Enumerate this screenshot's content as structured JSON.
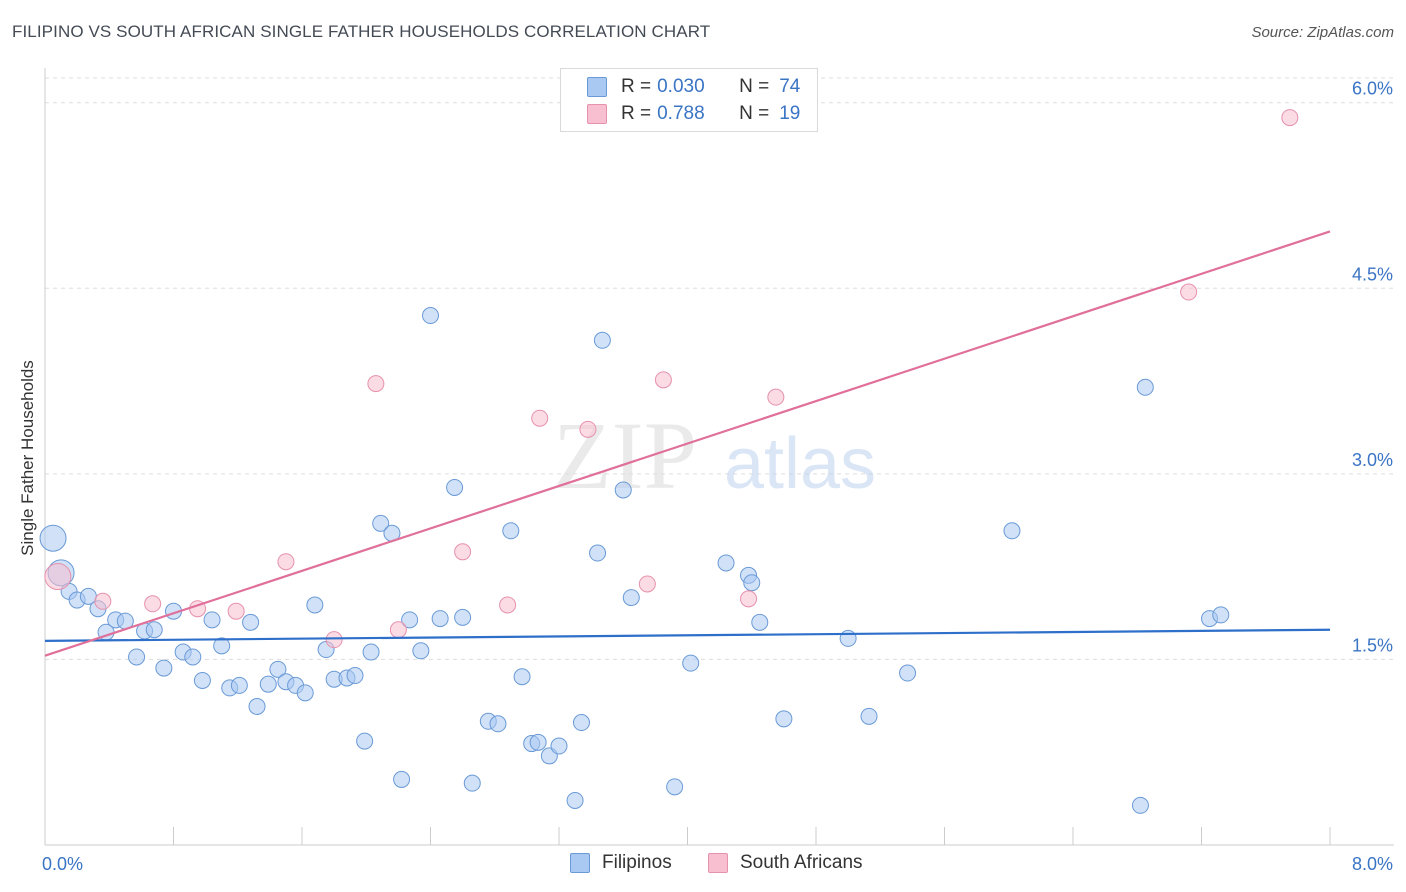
{
  "title": "FILIPINO VS SOUTH AFRICAN SINGLE FATHER HOUSEHOLDS CORRELATION CHART",
  "source": "Source: ZipAtlas.com",
  "watermark": {
    "zip": "ZIP",
    "atlas": "atlas"
  },
  "colors": {
    "blue_fill": "#a9c9f2",
    "blue_stroke": "#6a9ad6",
    "blue_line": "#2e6fca",
    "pink_fill": "#f7bfd0",
    "pink_stroke": "#e691ad",
    "pink_line": "#e0709a",
    "tick_text": "#3a74c4",
    "grid": "#dddddd"
  },
  "legend": {
    "rows": [
      {
        "r_label": "R =",
        "r_value": "0.030",
        "n_label": "N =",
        "n_value": "74",
        "color": "#a9c9f2"
      },
      {
        "r_label": "R =",
        "r_value": "0.788",
        "n_label": "N =",
        "n_value": "19",
        "color": "#f7bfd0"
      }
    ]
  },
  "chart_data": {
    "type": "scatter",
    "title": "FILIPINO VS SOUTH AFRICAN SINGLE FATHER HOUSEHOLDS CORRELATION CHART",
    "xlabel": "",
    "ylabel": "Single Father Households",
    "xlim": [
      0,
      8
    ],
    "ylim": [
      0,
      6.2
    ],
    "x_tick_labels": {
      "left": "0.0%",
      "right": "8.0%"
    },
    "y_ticks": [
      {
        "value": 1.5,
        "label": "1.5%"
      },
      {
        "value": 3.0,
        "label": "3.0%"
      },
      {
        "value": 4.5,
        "label": "4.5%"
      },
      {
        "value": 6.0,
        "label": "6.0%"
      }
    ],
    "legend_position": "top-center",
    "series": [
      {
        "name": "Filipinos",
        "color": "#a9c9f2",
        "R": 0.03,
        "N": 74,
        "trendline": {
          "x": [
            0,
            8
          ],
          "y": [
            1.65,
            1.74
          ]
        },
        "points": [
          {
            "x": 0.05,
            "y": 2.48,
            "big": true
          },
          {
            "x": 0.1,
            "y": 2.2,
            "big": true
          },
          {
            "x": 0.15,
            "y": 2.05
          },
          {
            "x": 0.2,
            "y": 1.98
          },
          {
            "x": 0.27,
            "y": 2.01
          },
          {
            "x": 0.33,
            "y": 1.91
          },
          {
            "x": 0.38,
            "y": 1.72
          },
          {
            "x": 0.44,
            "y": 1.82
          },
          {
            "x": 0.5,
            "y": 1.81
          },
          {
            "x": 0.57,
            "y": 1.52
          },
          {
            "x": 0.62,
            "y": 1.73
          },
          {
            "x": 0.68,
            "y": 1.74
          },
          {
            "x": 0.74,
            "y": 1.43
          },
          {
            "x": 0.8,
            "y": 1.89
          },
          {
            "x": 0.86,
            "y": 1.56
          },
          {
            "x": 0.92,
            "y": 1.52
          },
          {
            "x": 0.98,
            "y": 1.33
          },
          {
            "x": 1.04,
            "y": 1.82
          },
          {
            "x": 1.1,
            "y": 1.61
          },
          {
            "x": 1.15,
            "y": 1.27
          },
          {
            "x": 1.21,
            "y": 1.29
          },
          {
            "x": 1.28,
            "y": 1.8
          },
          {
            "x": 1.32,
            "y": 1.12
          },
          {
            "x": 1.39,
            "y": 1.3
          },
          {
            "x": 1.45,
            "y": 1.42
          },
          {
            "x": 1.5,
            "y": 1.32
          },
          {
            "x": 1.56,
            "y": 1.29
          },
          {
            "x": 1.62,
            "y": 1.23
          },
          {
            "x": 1.68,
            "y": 1.94
          },
          {
            "x": 1.75,
            "y": 1.58
          },
          {
            "x": 1.8,
            "y": 1.34
          },
          {
            "x": 1.88,
            "y": 1.35
          },
          {
            "x": 1.93,
            "y": 1.37
          },
          {
            "x": 1.99,
            "y": 0.84
          },
          {
            "x": 2.03,
            "y": 1.56
          },
          {
            "x": 2.09,
            "y": 2.6
          },
          {
            "x": 2.16,
            "y": 2.52
          },
          {
            "x": 2.22,
            "y": 0.53
          },
          {
            "x": 2.27,
            "y": 1.82
          },
          {
            "x": 2.34,
            "y": 1.57
          },
          {
            "x": 2.4,
            "y": 4.28
          },
          {
            "x": 2.46,
            "y": 1.83
          },
          {
            "x": 2.55,
            "y": 2.89
          },
          {
            "x": 2.6,
            "y": 1.84
          },
          {
            "x": 2.66,
            "y": 0.5
          },
          {
            "x": 2.76,
            "y": 1.0
          },
          {
            "x": 2.82,
            "y": 0.98
          },
          {
            "x": 2.9,
            "y": 2.54
          },
          {
            "x": 2.97,
            "y": 1.36
          },
          {
            "x": 3.03,
            "y": 0.82
          },
          {
            "x": 3.07,
            "y": 0.83
          },
          {
            "x": 3.14,
            "y": 0.72
          },
          {
            "x": 3.2,
            "y": 0.8
          },
          {
            "x": 3.3,
            "y": 0.36
          },
          {
            "x": 3.34,
            "y": 0.99
          },
          {
            "x": 3.44,
            "y": 2.36
          },
          {
            "x": 3.47,
            "y": 4.08
          },
          {
            "x": 3.6,
            "y": 2.87
          },
          {
            "x": 3.65,
            "y": 2.0
          },
          {
            "x": 3.92,
            "y": 0.47
          },
          {
            "x": 4.02,
            "y": 1.47
          },
          {
            "x": 4.24,
            "y": 2.28
          },
          {
            "x": 4.38,
            "y": 2.18
          },
          {
            "x": 4.4,
            "y": 2.12
          },
          {
            "x": 4.45,
            "y": 1.8
          },
          {
            "x": 4.6,
            "y": 1.02
          },
          {
            "x": 5.0,
            "y": 1.67
          },
          {
            "x": 5.13,
            "y": 1.04
          },
          {
            "x": 5.37,
            "y": 1.39
          },
          {
            "x": 6.02,
            "y": 2.54
          },
          {
            "x": 6.82,
            "y": 0.32
          },
          {
            "x": 6.85,
            "y": 3.7
          },
          {
            "x": 7.25,
            "y": 1.83
          },
          {
            "x": 7.32,
            "y": 1.86
          }
        ]
      },
      {
        "name": "South Africans",
        "color": "#f7bfd0",
        "R": 0.788,
        "N": 19,
        "trendline": {
          "x": [
            0,
            8
          ],
          "y": [
            1.53,
            4.96
          ]
        },
        "points": [
          {
            "x": 0.08,
            "y": 2.17,
            "big": true
          },
          {
            "x": 0.36,
            "y": 1.97
          },
          {
            "x": 0.67,
            "y": 1.95
          },
          {
            "x": 0.95,
            "y": 1.91
          },
          {
            "x": 1.19,
            "y": 1.89
          },
          {
            "x": 1.5,
            "y": 2.29
          },
          {
            "x": 1.8,
            "y": 1.66
          },
          {
            "x": 2.06,
            "y": 3.73
          },
          {
            "x": 2.2,
            "y": 1.74
          },
          {
            "x": 2.6,
            "y": 2.37
          },
          {
            "x": 2.88,
            "y": 1.94
          },
          {
            "x": 3.08,
            "y": 3.45
          },
          {
            "x": 3.38,
            "y": 3.36
          },
          {
            "x": 3.75,
            "y": 2.11
          },
          {
            "x": 3.85,
            "y": 3.76
          },
          {
            "x": 4.38,
            "y": 1.99
          },
          {
            "x": 4.55,
            "y": 3.62
          },
          {
            "x": 7.12,
            "y": 4.47
          },
          {
            "x": 7.75,
            "y": 5.88
          }
        ]
      }
    ]
  },
  "bottom_legend": [
    {
      "label": "Filipinos",
      "color": "#a9c9f2"
    },
    {
      "label": "South Africans",
      "color": "#f7bfd0"
    }
  ]
}
